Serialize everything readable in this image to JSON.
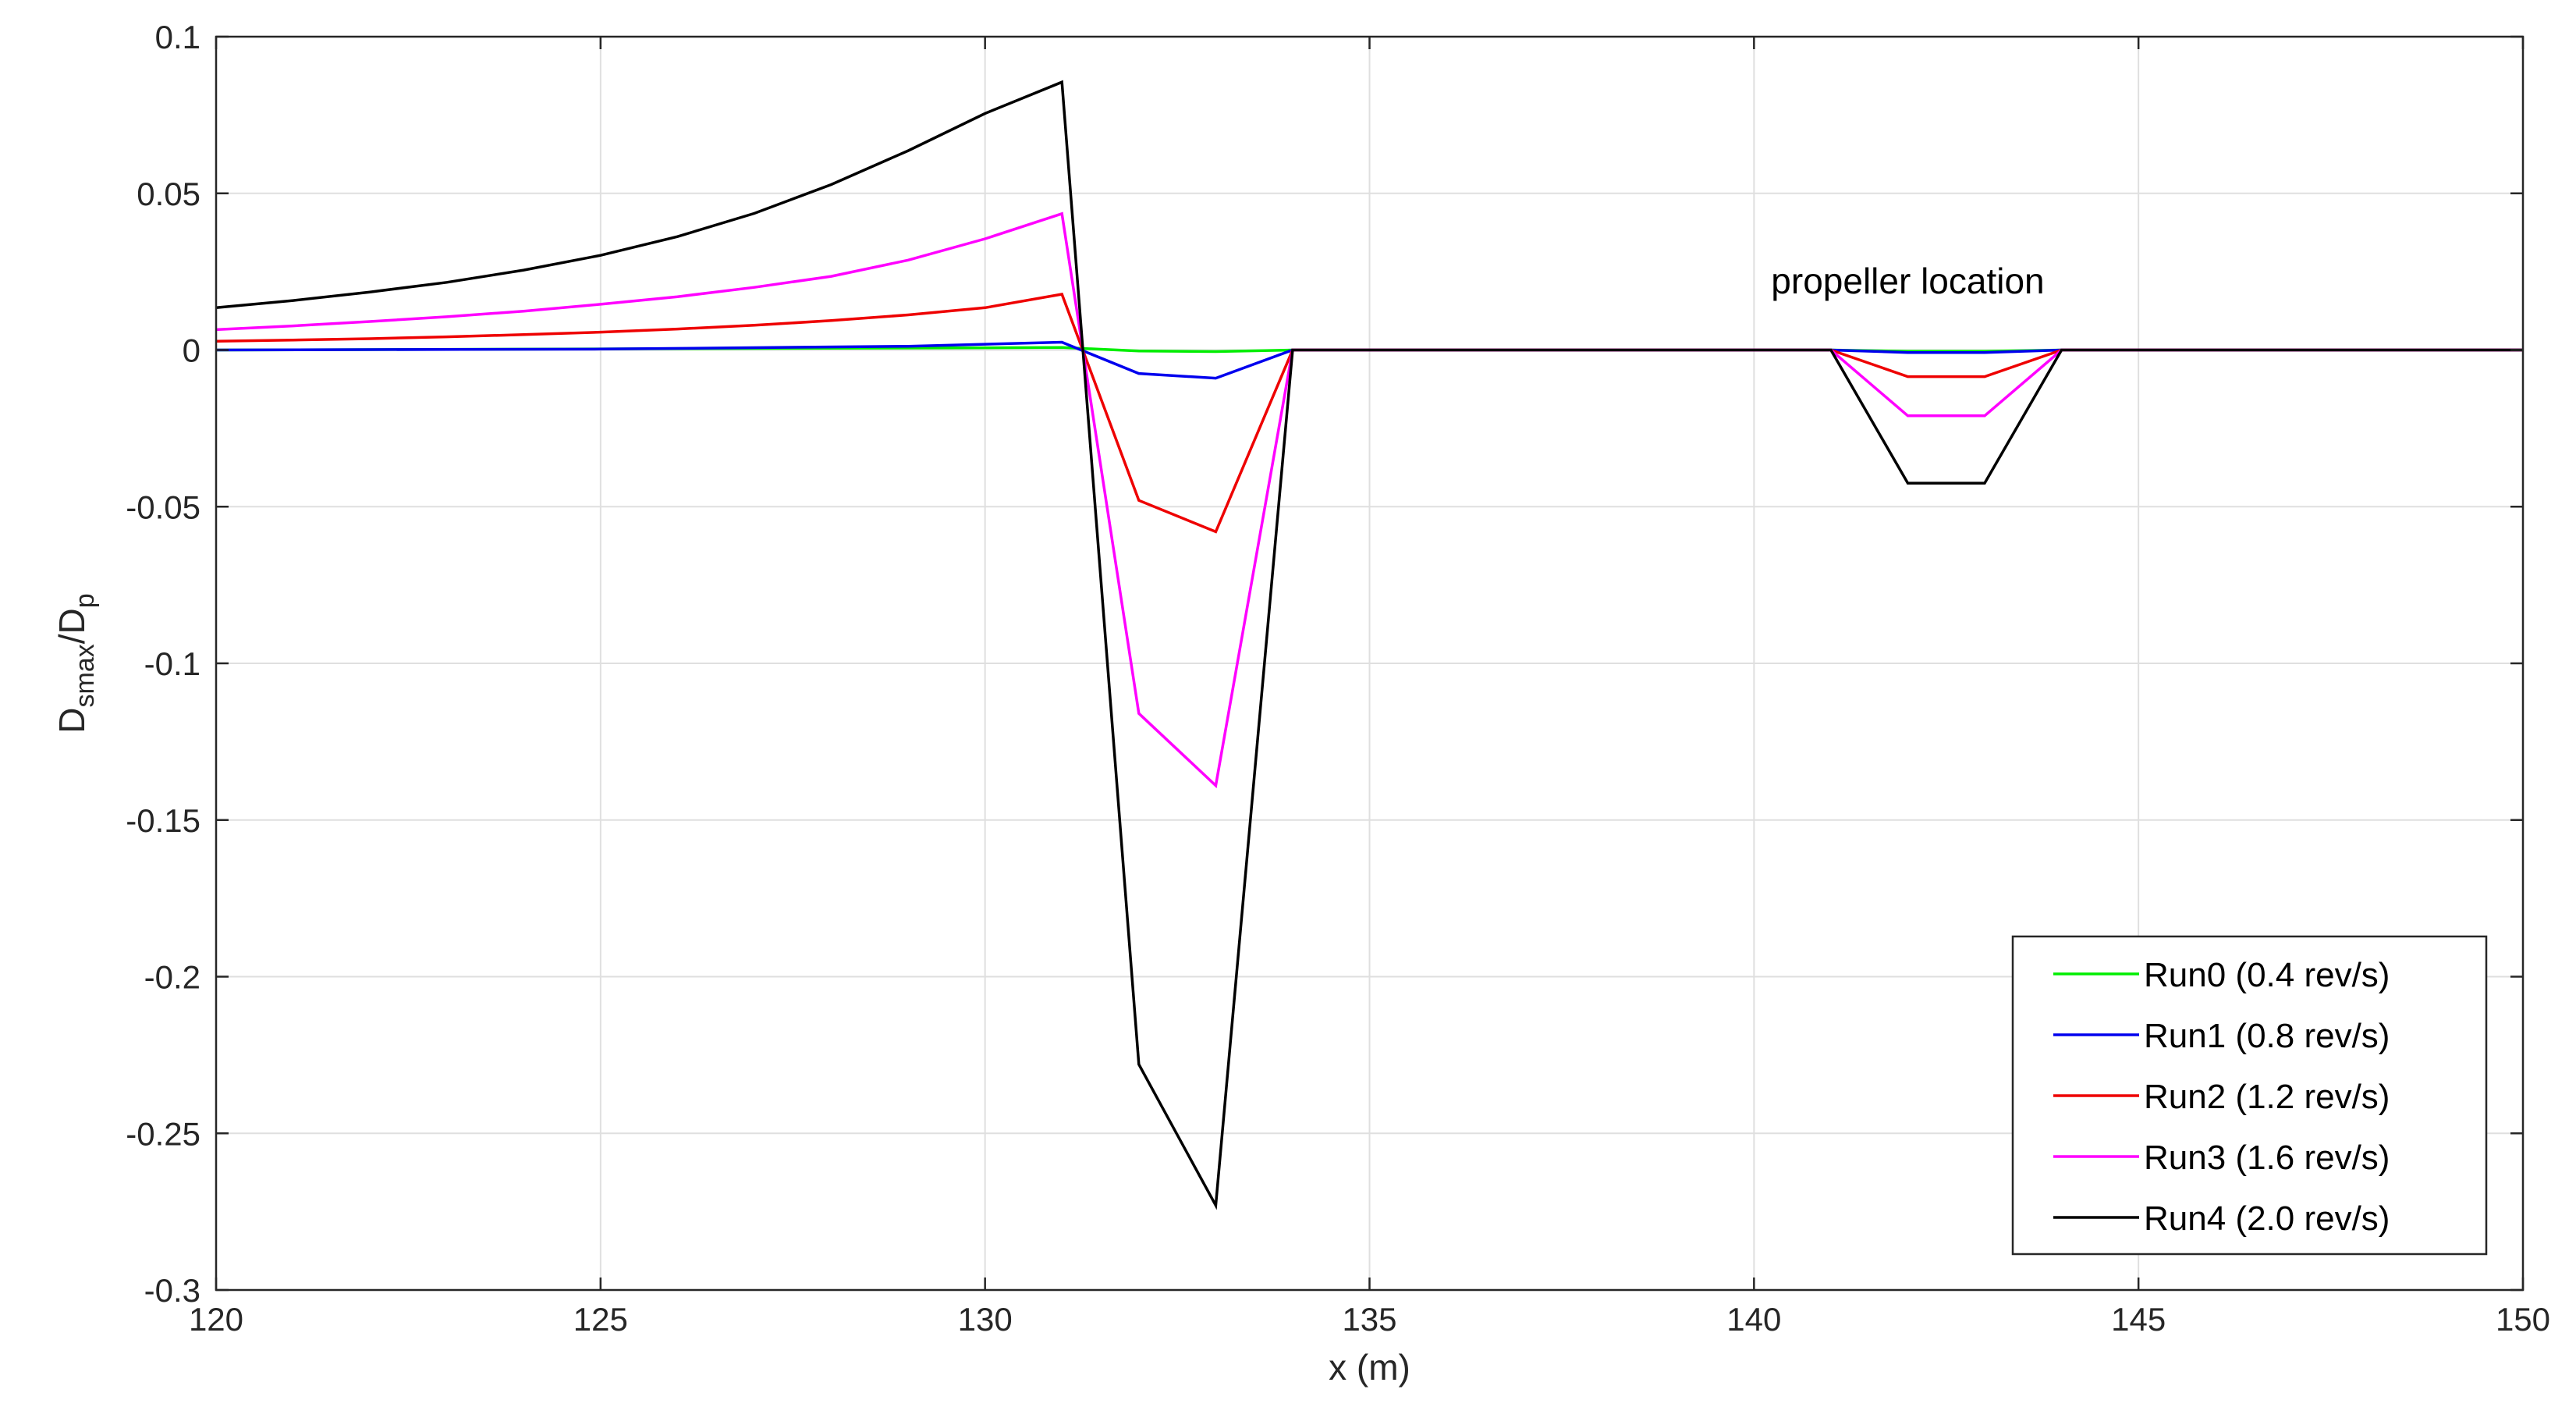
{
  "chart_data": {
    "type": "line",
    "xlabel": "x (m)",
    "ylabel_main": "D",
    "ylabel_sub1": "smax",
    "ylabel_mid": "/D",
    "ylabel_sub2": "p",
    "xlim": [
      120,
      150
    ],
    "ylim": [
      -0.3,
      0.1
    ],
    "xticks": [
      120,
      125,
      130,
      135,
      140,
      145,
      150
    ],
    "xtick_labels": [
      "120",
      "125",
      "130",
      "135",
      "140",
      "145",
      "150"
    ],
    "yticks": [
      0.1,
      0.05,
      0,
      -0.05,
      -0.1,
      -0.15,
      -0.2,
      -0.25,
      -0.3
    ],
    "ytick_labels": [
      "0.1",
      "0.05",
      "0",
      "-0.05",
      "-0.1",
      "-0.15",
      "-0.2",
      "-0.25",
      "-0.3"
    ],
    "grid": true,
    "legend_position": "bottom-right",
    "annotation": {
      "text": "propeller location",
      "x": 142,
      "y": 0.018
    },
    "series": [
      {
        "name": "Run0 (0.4 rev/s)",
        "color": "#00ee00",
        "x": [
          120,
          131,
          132,
          133,
          134,
          141,
          142,
          143,
          144,
          150
        ],
        "y": [
          0.0,
          0.0008,
          -0.0003,
          -0.0005,
          0.0,
          0.0,
          -0.0004,
          -0.0004,
          0.0,
          0.0
        ]
      },
      {
        "name": "Run1 (0.8 rev/s)",
        "color": "#0000ee",
        "x": [
          120,
          125,
          129,
          131,
          132,
          133,
          134,
          141,
          142,
          143,
          144,
          150
        ],
        "y": [
          0.0,
          0.0003,
          0.0012,
          0.0025,
          -0.0075,
          -0.009,
          0.0,
          0.0,
          -0.0008,
          -0.0008,
          0.0,
          0.0
        ]
      },
      {
        "name": "Run2 (1.2 rev/s)",
        "color": "#ee0000",
        "x": [
          120,
          121,
          122,
          123,
          124,
          125,
          126,
          127,
          128,
          129,
          130,
          131,
          132,
          133,
          134,
          141,
          142,
          143,
          144,
          150
        ],
        "y": [
          0.0028,
          0.0032,
          0.0036,
          0.0042,
          0.0049,
          0.0057,
          0.0067,
          0.0079,
          0.0094,
          0.0112,
          0.0135,
          0.0178,
          -0.048,
          -0.058,
          0.0,
          0.0,
          -0.0085,
          -0.0085,
          0.0,
          0.0
        ]
      },
      {
        "name": "Run3 (1.6 rev/s)",
        "color": "#ff00ff",
        "x": [
          120,
          121,
          122,
          123,
          124,
          125,
          126,
          127,
          128,
          129,
          130,
          131,
          132,
          133,
          134,
          141,
          142,
          143,
          144,
          150
        ],
        "y": [
          0.0065,
          0.0077,
          0.0091,
          0.0106,
          0.0124,
          0.0146,
          0.017,
          0.02,
          0.0235,
          0.0287,
          0.0355,
          0.0435,
          -0.116,
          -0.139,
          0.0,
          0.0,
          -0.021,
          -0.021,
          0.0,
          0.0
        ]
      },
      {
        "name": "Run4 (2.0 rev/s)",
        "color": "#000000",
        "x": [
          120,
          121,
          122,
          123,
          124,
          125,
          126,
          127,
          128,
          129,
          130,
          131,
          132,
          133,
          134,
          141,
          142,
          143,
          144,
          150
        ],
        "y": [
          0.0135,
          0.0158,
          0.0185,
          0.0216,
          0.0255,
          0.0302,
          0.0362,
          0.0436,
          0.0528,
          0.0636,
          0.0755,
          0.0855,
          -0.228,
          -0.273,
          0.0,
          0.0,
          -0.0425,
          -0.0425,
          0.0,
          0.0
        ]
      }
    ]
  }
}
